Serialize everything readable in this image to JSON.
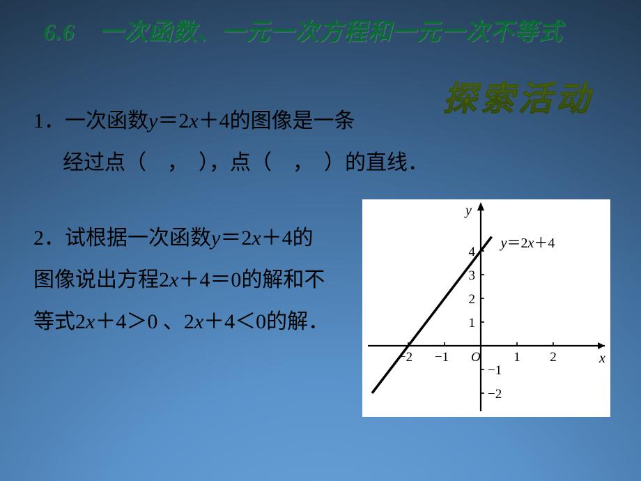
{
  "title": "6.6　一次函数、一元一次方程和一元一次不等式",
  "activity_label": "探索活动",
  "p1": {
    "prefix": "1．一次函数",
    "y": "y",
    "eq": "＝2",
    "x": "x",
    "suffix": "＋4的图像是一条"
  },
  "p2": "经过点（　，　），点（　，　）的直线．",
  "p3": {
    "prefix": "2．试根据一次函数",
    "y": "y",
    "eq": "＝2",
    "x": "x",
    "suffix": "＋4的"
  },
  "p4": {
    "prefix": "图像说出方程2",
    "x": "x",
    "suffix": "＋4＝0的解和不"
  },
  "p5": {
    "prefix": "等式2",
    "x1": "x",
    "mid": "＋4＞0 、2",
    "x2": "x",
    "suffix": "＋4＜0的解．"
  },
  "graph": {
    "type": "line",
    "line_equation_label": "y＝2x＋4",
    "axis_label_x": "x",
    "axis_label_y": "y",
    "origin_label": "O",
    "xlim": [
      -2.6,
      2.6
    ],
    "ylim": [
      -2.6,
      4.6
    ],
    "xticks": [
      -2,
      -1,
      1,
      2
    ],
    "yticks_pos": [
      1,
      2,
      3,
      4
    ],
    "yticks_neg": [
      -1,
      -2
    ],
    "line_points_data": [
      [
        -3,
        -2
      ],
      [
        0.3,
        4.6
      ]
    ],
    "origin_xy": [
      170,
      210
    ],
    "scale_x": 52,
    "scale_y": 34,
    "axis_color": "#000000",
    "line_color": "#000000",
    "line_width": 3.5,
    "axis_width": 2.2,
    "tick_len": 5,
    "background": "#ffffff",
    "label_fontsize": 20,
    "tick_fontsize": 19
  }
}
